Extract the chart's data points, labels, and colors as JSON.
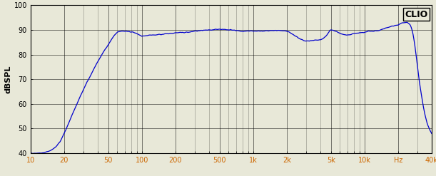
{
  "title": "CLIO",
  "ylabel": "dBSPL",
  "xlim": [
    10,
    40000
  ],
  "ylim": [
    40,
    100
  ],
  "yticks": [
    40,
    50,
    60,
    70,
    80,
    90,
    100
  ],
  "xticks": [
    10,
    20,
    50,
    100,
    200,
    500,
    1000,
    2000,
    5000,
    10000,
    20000,
    40000
  ],
  "xticklabels": [
    "10",
    "20",
    "50",
    "100",
    "200",
    "500",
    "1k",
    "2k",
    "5k",
    "10k",
    "Hz",
    "40k"
  ],
  "line_color": "#0000cc",
  "background_color": "#e8e8d8",
  "grid_color": "#000000",
  "title_fontsize": 9,
  "label_fontsize": 8,
  "tick_fontsize": 7,
  "key_points": [
    [
      10,
      40
    ],
    [
      12,
      40
    ],
    [
      15,
      41
    ],
    [
      18,
      44
    ],
    [
      20,
      48
    ],
    [
      25,
      58
    ],
    [
      30,
      66
    ],
    [
      35,
      72
    ],
    [
      40,
      77
    ],
    [
      45,
      81
    ],
    [
      50,
      84
    ],
    [
      55,
      87
    ],
    [
      60,
      89
    ],
    [
      65,
      89.5
    ],
    [
      70,
      89.5
    ],
    [
      80,
      89.2
    ],
    [
      90,
      88.5
    ],
    [
      100,
      87.5
    ],
    [
      120,
      87.8
    ],
    [
      150,
      88.2
    ],
    [
      180,
      88.5
    ],
    [
      200,
      88.8
    ],
    [
      250,
      89.0
    ],
    [
      300,
      89.5
    ],
    [
      400,
      90.0
    ],
    [
      500,
      90.2
    ],
    [
      600,
      90.0
    ],
    [
      700,
      89.8
    ],
    [
      800,
      89.5
    ],
    [
      1000,
      89.5
    ],
    [
      1200,
      89.5
    ],
    [
      1500,
      89.8
    ],
    [
      2000,
      89.5
    ],
    [
      2200,
      88.5
    ],
    [
      2500,
      87.0
    ],
    [
      3000,
      85.5
    ],
    [
      3500,
      85.8
    ],
    [
      4000,
      86.0
    ],
    [
      4500,
      87.5
    ],
    [
      5000,
      90.0
    ],
    [
      5500,
      89.5
    ],
    [
      6000,
      88.5
    ],
    [
      7000,
      88.0
    ],
    [
      8000,
      88.5
    ],
    [
      9000,
      88.8
    ],
    [
      10000,
      89.0
    ],
    [
      11000,
      89.5
    ],
    [
      12000,
      89.5
    ],
    [
      14000,
      90.0
    ],
    [
      16000,
      91.0
    ],
    [
      18000,
      91.5
    ],
    [
      20000,
      92.0
    ],
    [
      22000,
      93.0
    ],
    [
      24000,
      93.0
    ],
    [
      25000,
      92.5
    ],
    [
      26000,
      91.5
    ],
    [
      27000,
      89.0
    ],
    [
      28000,
      85.0
    ],
    [
      29000,
      80.0
    ],
    [
      30000,
      74.0
    ],
    [
      32000,
      65.0
    ],
    [
      34000,
      58.0
    ],
    [
      36000,
      53.0
    ],
    [
      38000,
      50.0
    ],
    [
      40000,
      48.0
    ]
  ]
}
